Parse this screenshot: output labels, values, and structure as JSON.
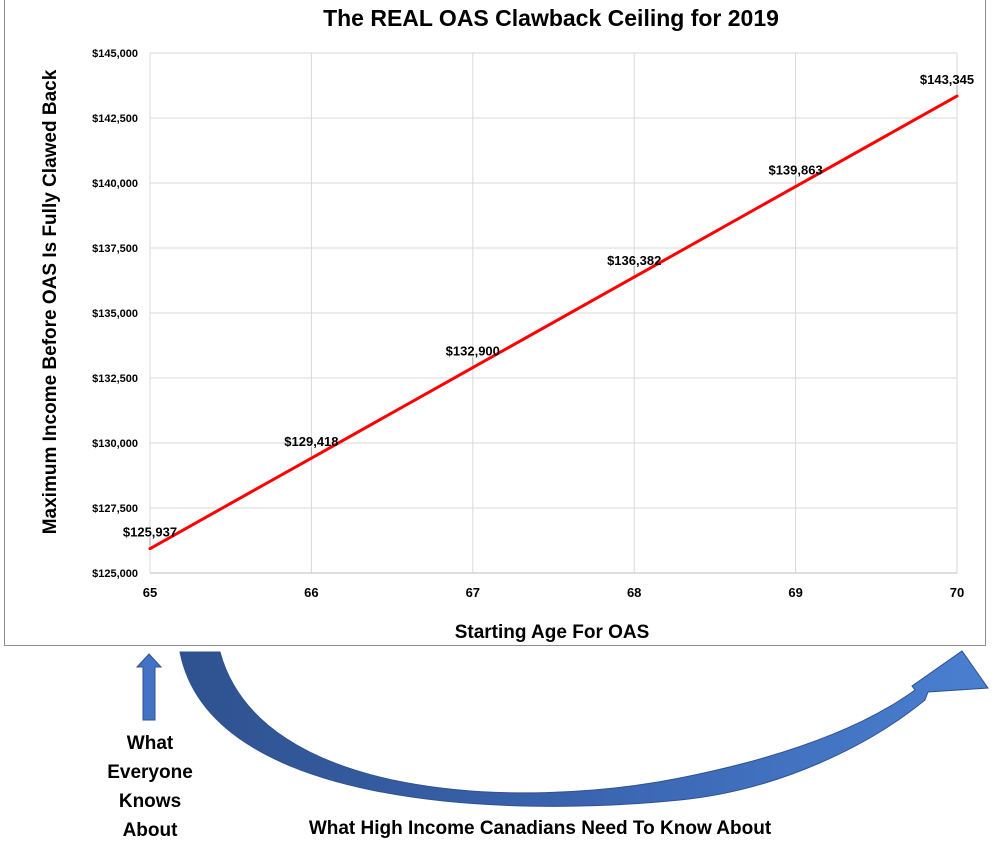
{
  "chart_data": {
    "type": "line",
    "title": "The REAL OAS Clawback Ceiling for 2019",
    "xlabel": "Starting Age For OAS",
    "ylabel": "Maximum Income Before OAS Is Fully Clawed Back",
    "x": [
      65,
      66,
      67,
      68,
      69,
      70
    ],
    "x_ticks": [
      "65",
      "66",
      "67",
      "68",
      "69",
      "70"
    ],
    "xlim": [
      65,
      70
    ],
    "ylim": [
      125000,
      145000
    ],
    "y_ticks": [
      125000,
      127500,
      130000,
      132500,
      135000,
      137500,
      140000,
      142500,
      145000
    ],
    "y_tick_labels": [
      "$125,000",
      "$127,500",
      "$130,000",
      "$132,500",
      "$135,000",
      "$137,500",
      "$140,000",
      "$142,500",
      "$145,000"
    ],
    "series": [
      {
        "values": [
          125937,
          129418,
          132900,
          136382,
          139863,
          143345
        ],
        "data_labels": [
          "$125,937",
          "$129,418",
          "$132,900",
          "$136,382",
          "$139,863",
          "$143,345"
        ],
        "color": "#ff0000"
      }
    ],
    "grid": "both",
    "legend": "none"
  },
  "annotations": {
    "left_arrow_color": "#4472c4",
    "curved_arrow_color": "#4472c4",
    "left_caption_lines": [
      "What",
      "Everyone",
      "Knows",
      "About"
    ],
    "right_caption": "What High Income Canadians Need To Know About"
  }
}
